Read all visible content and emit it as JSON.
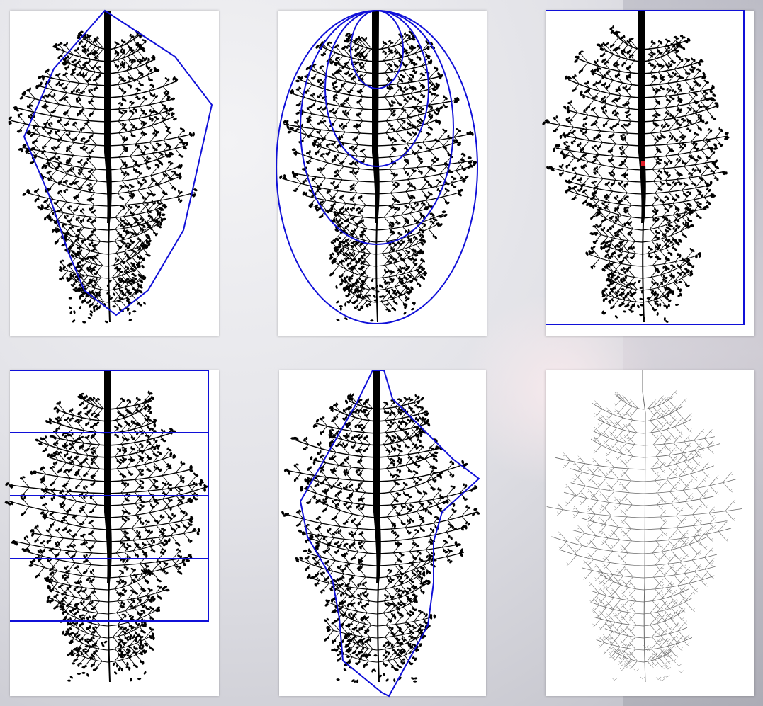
{
  "figure": {
    "panels": [
      {
        "id": "convex-hull",
        "overlay": "hull"
      },
      {
        "id": "nested-ellipses",
        "overlay": "ellipses",
        "count": 4
      },
      {
        "id": "bounding-box",
        "overlay": "box",
        "marker_color": "#e0202a"
      },
      {
        "id": "horizontal-layers",
        "overlay": "layers",
        "count": 4
      },
      {
        "id": "concave-hull",
        "overlay": "concave"
      },
      {
        "id": "skeleton",
        "overlay": "skeleton"
      }
    ],
    "colors": {
      "outline": "#1010d8",
      "tree": "#000000",
      "skeleton": "#6a6a6a",
      "marker": "#e0202a"
    }
  }
}
